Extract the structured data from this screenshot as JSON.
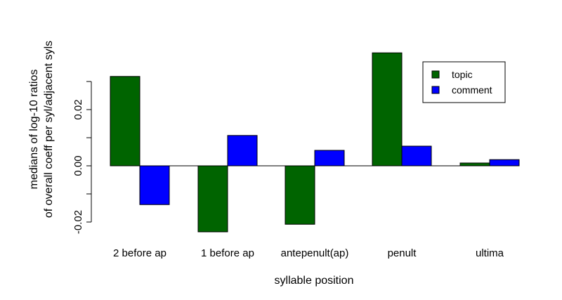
{
  "chart_data": {
    "type": "bar",
    "title": "",
    "xlabel": "syllable position",
    "ylabel_line1": "medians of log-10 ratios",
    "ylabel_line2": "of overall coeff per syl/adjacent syls",
    "categories": [
      "2 before ap",
      "1 before ap",
      "antepenult(ap)",
      "penult",
      "ultima"
    ],
    "series": [
      {
        "name": "topic",
        "color": "#006400",
        "values": [
          0.0318,
          -0.0235,
          -0.0208,
          0.0402,
          0.001
        ]
      },
      {
        "name": "comment",
        "color": "#0000ff",
        "values": [
          -0.0138,
          0.0108,
          0.0055,
          0.007,
          0.0022
        ]
      }
    ],
    "ylim": [
      -0.025,
      0.04
    ],
    "yticks": [
      -0.02,
      0.0,
      0.02
    ],
    "ytick_labels": [
      "-0.02",
      "0.00",
      "0.02"
    ],
    "grid": false,
    "legend_position": "top-right"
  }
}
